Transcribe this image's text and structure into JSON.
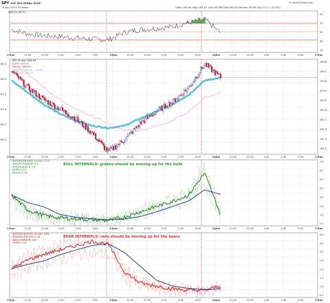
{
  "header": {
    "symbol": "SPY",
    "name": "S&P 500 SPDRs",
    "exchange": "NYSE",
    "date": "14-Jun-2013",
    "time": "10:46am",
    "ohlc": "Open 164.00  High 164.87  Low 163.86  Last 164.04  Volume 26.0M  Chg -0.17 (-0.10%)",
    "watermark": "© StockCharts.com"
  },
  "rsi_panel": {
    "label": "RSI(14) 46.70",
    "right_ticks": [
      "90",
      "70",
      "50",
      "30",
      "10"
    ]
  },
  "price_panel": {
    "legend": [
      {
        "text": "SPY (5 min) 164.04",
        "color": "#111111"
      },
      {
        "text": "VWAP 164.45",
        "color": "#e040a0"
      },
      {
        "text": "MA(20) 164.23",
        "color": "#aa2222"
      },
      {
        "text": "EMA(50) 164.03 – 164.6",
        "color": "#5ac3da"
      },
      {
        "text": "EMA(200) 163.43",
        "color": "#f0a0d8"
      }
    ],
    "left_ticks": [
      "88.5",
      "88.0",
      "87.5",
      "87.0",
      "86.5",
      "86.0"
    ],
    "right_ticks": [
      "164.6",
      "164.2",
      "163.8",
      "163.4",
      "163.0",
      "162.6",
      "162.2",
      "161.8",
      "161.4",
      "161.0"
    ]
  },
  "bull_panel": {
    "legend": [
      "$NYUPV:$NYDNV (5 min) 1.23",
      "$NAUPV:$NADNV 2.5",
      "$ADVN:$DECN 2.6",
      "$TRIN 0.93",
      "$NAAD 0.84"
    ],
    "note": "BULL INTERNALS: greens should be moving up for the bulls",
    "right_ticks": [
      "7.0",
      "6.0",
      "5.0",
      "4.0",
      "3.0",
      "2.0",
      "1.0",
      "0.5"
    ]
  },
  "bear_panel": {
    "legend": [
      "$NYDNV:$NYUPV (5 min) 0.81",
      "$NADNV:$NAUPV 0.38",
      "$DECN:$ADVN 0.81",
      "$TRIN 1.08"
    ],
    "note": "BEAR INTERNALS: reds should be moving up for the bears",
    "right_ticks": [
      "4.0",
      "3.5",
      "3.0",
      "2.5",
      "2.0",
      "1.5",
      "1.0",
      "0.5"
    ]
  },
  "time_axis": [
    "17Jun",
    "11:00",
    "12:00",
    "1:00",
    "2:00",
    "3:00",
    "13Jun",
    "11:00",
    "12:00",
    "1:00",
    "2:00",
    "3:00",
    "14Jun",
    "11:00",
    "12:00",
    "1:00",
    "2:00",
    "3:00",
    "17Jun"
  ],
  "chart_data": {
    "type": "line",
    "symbol": "SPY",
    "timeframe": "5 min",
    "days": [
      "12Jun",
      "13Jun",
      "14Jun"
    ],
    "price": {
      "name": "SPY (5 min)",
      "x": [
        "12Jun 10:00",
        "12Jun 11:00",
        "12Jun 12:00",
        "12Jun 1:00",
        "12Jun 2:00",
        "12Jun 3:00",
        "13Jun 10:00",
        "13Jun 11:00",
        "13Jun 12:00",
        "13Jun 1:00",
        "13Jun 2:00",
        "13Jun 3:00",
        "14Jun 10:00",
        "14Jun 10:45"
      ],
      "values": [
        164.3,
        163.6,
        163.1,
        162.7,
        162.3,
        161.7,
        160.9,
        161.4,
        162.1,
        162.6,
        163.0,
        163.6,
        164.6,
        164.04
      ],
      "last": 164.04
    },
    "vwap": 164.45,
    "ma20": 164.23,
    "ema50": [
      163.9,
      163.4,
      162.9,
      162.5,
      162.2,
      162.0,
      161.9,
      162.0,
      162.3,
      162.6,
      162.9,
      163.3,
      163.9,
      164.03
    ],
    "rsi14": {
      "values": [
        55,
        45,
        40,
        38,
        35,
        32,
        30,
        48,
        55,
        58,
        62,
        72,
        80,
        46.7
      ],
      "last": 46.7,
      "levels": [
        30,
        70
      ]
    },
    "bull_internals": {
      "values": [
        3.5,
        1.8,
        1.2,
        0.9,
        0.8,
        0.7,
        0.6,
        1.0,
        1.6,
        2.2,
        2.8,
        3.5,
        6.0,
        1.23
      ],
      "last": 1.23
    },
    "bear_internals": {
      "values": [
        2.0,
        2.6,
        3.0,
        3.3,
        3.6,
        3.9,
        3.7,
        1.8,
        1.0,
        0.8,
        0.6,
        0.5,
        0.5,
        0.81
      ],
      "last": 0.81
    },
    "ylim_price": [
      160.8,
      164.8
    ],
    "ylim_rsi": [
      0,
      100
    ]
  },
  "colors": {
    "candle_up": "#1f3f8c",
    "candle_down": "#c0172b",
    "ema50": "#5ac3da",
    "vwap": "#e040a0",
    "bull": "#1f7a1f",
    "bear": "#cc2222",
    "day_line_green": "#33aa33",
    "day_line_red": "#d62b2b"
  }
}
